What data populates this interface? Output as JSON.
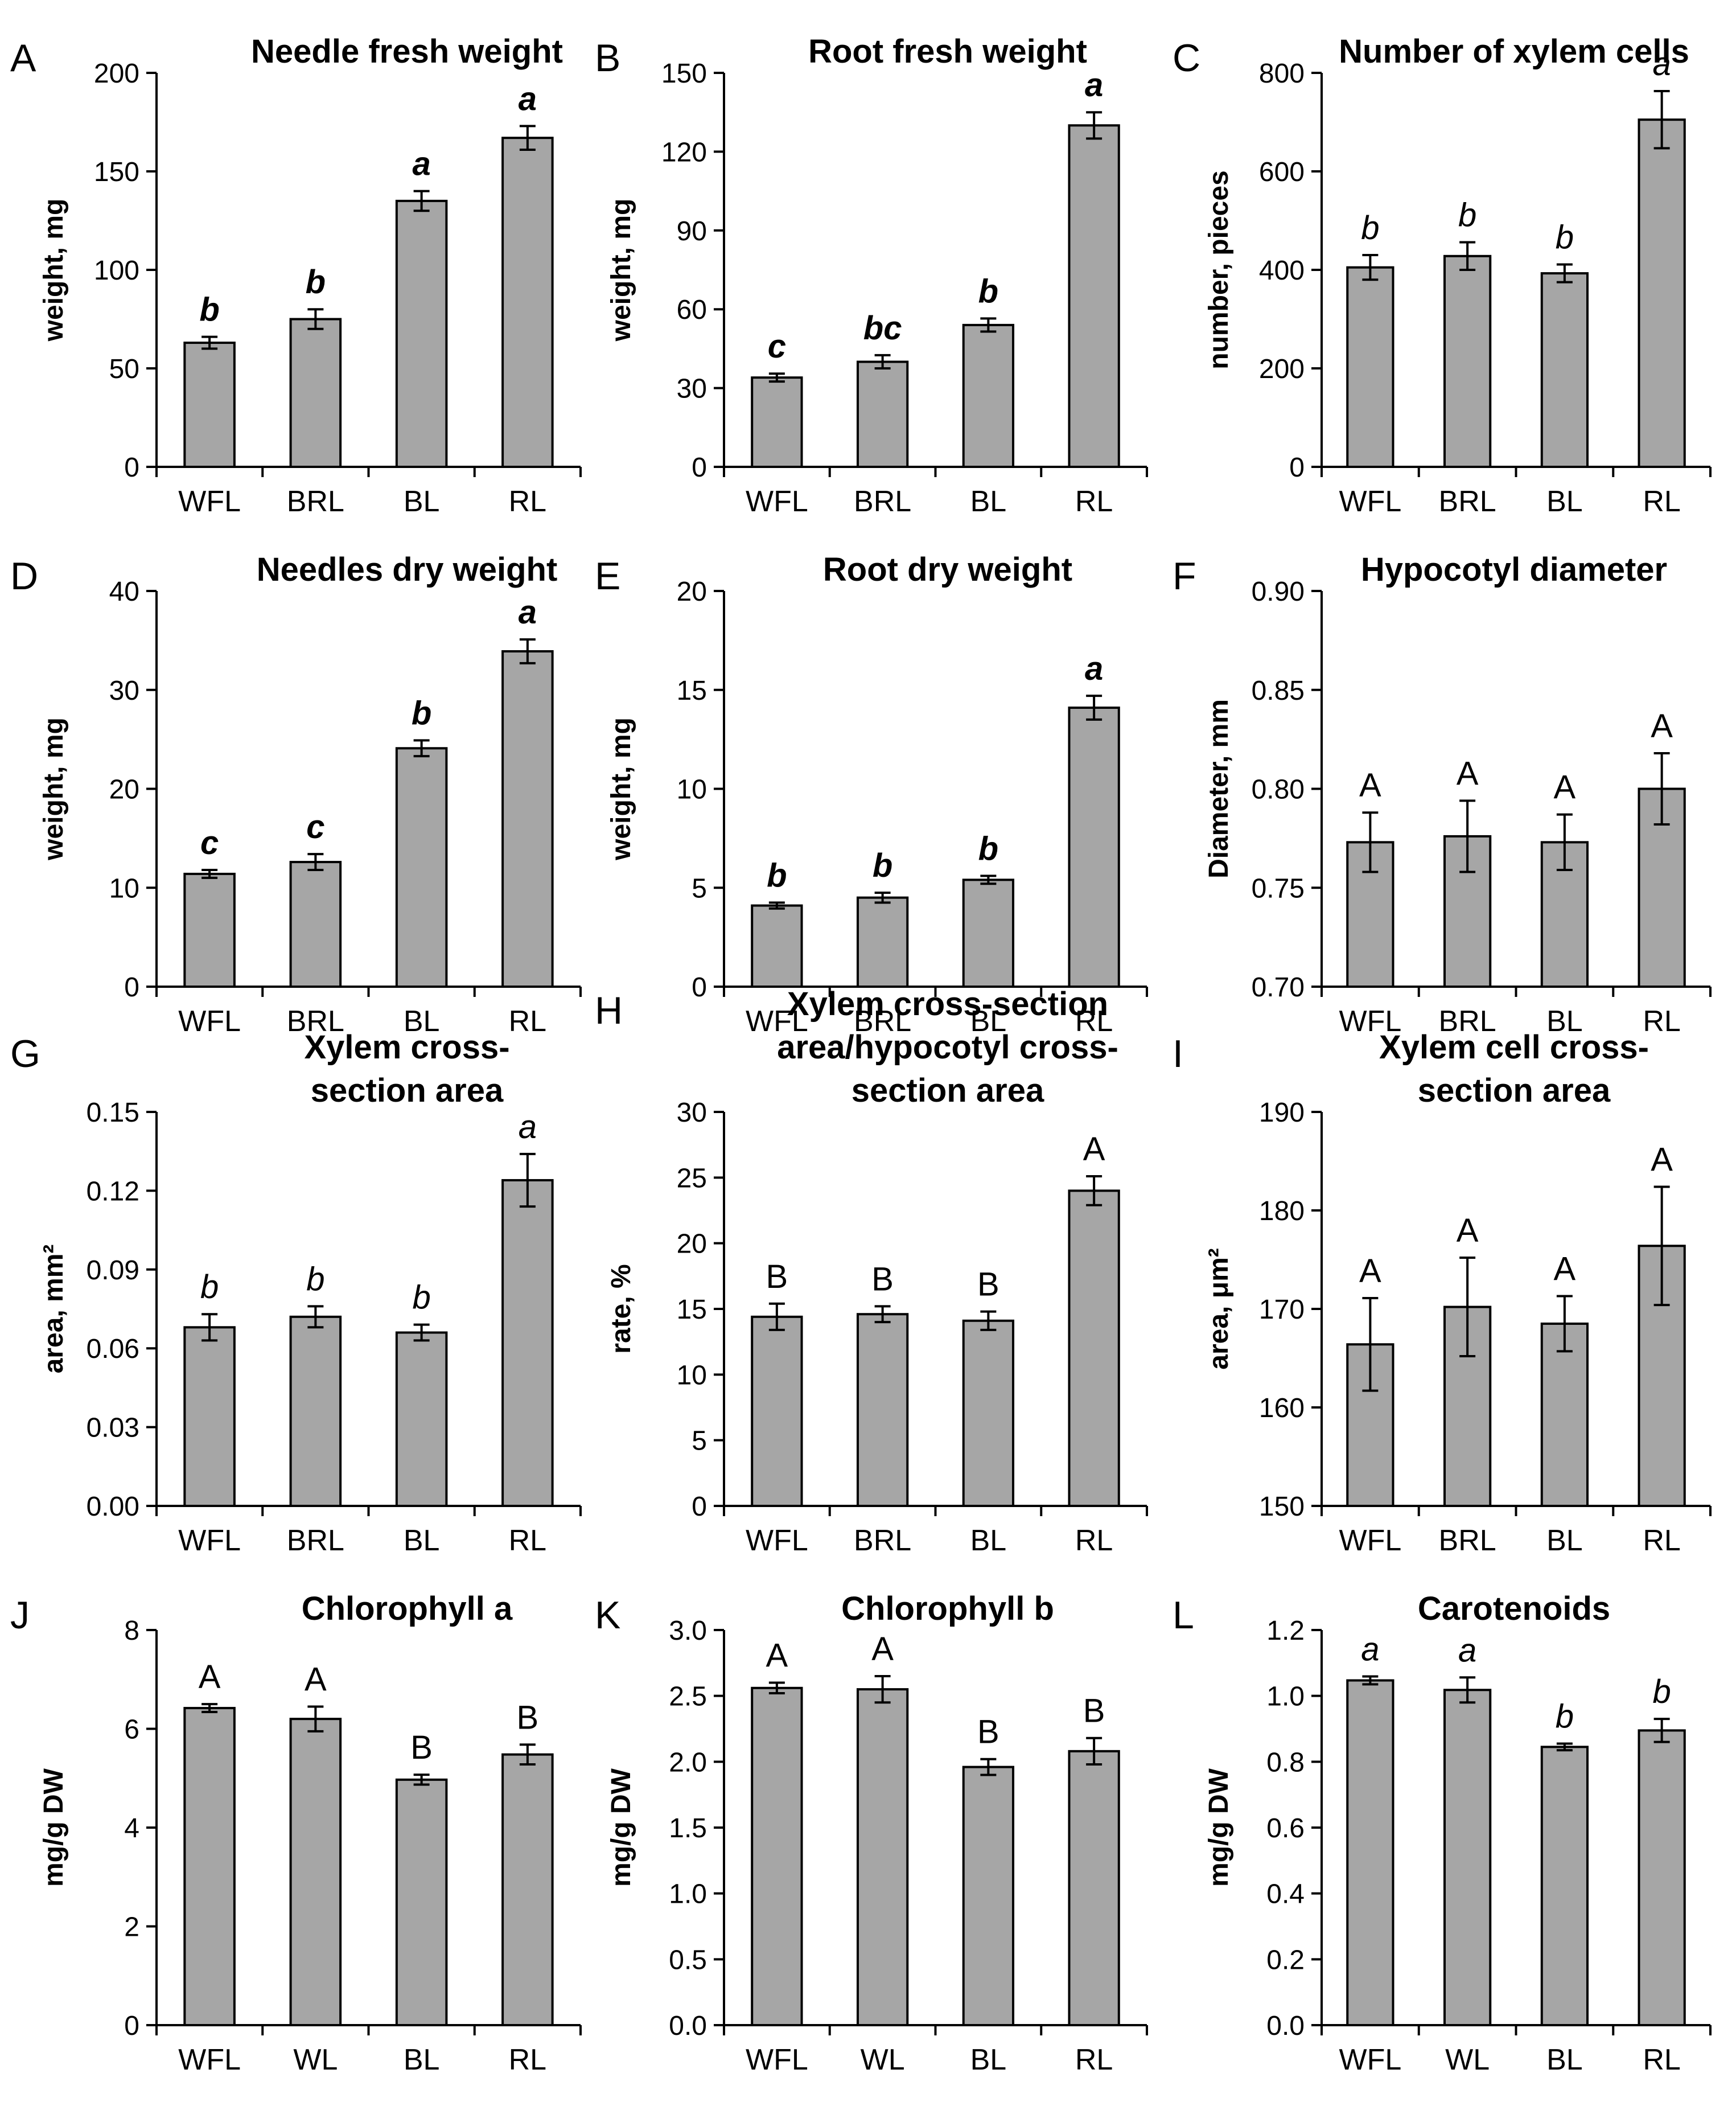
{
  "figure": {
    "panels": [
      {
        "letter": "A",
        "title": [
          "Needle fresh weight"
        ],
        "ylabel": "weight, mg"
      },
      {
        "letter": "B",
        "title": [
          "Root fresh weight"
        ],
        "ylabel": "weight, mg"
      },
      {
        "letter": "C",
        "title": [
          "Number of xylem cells"
        ],
        "ylabel": "number, pieces"
      },
      {
        "letter": "D",
        "title": [
          "Needles dry weight"
        ],
        "ylabel": "weight, mg"
      },
      {
        "letter": "E",
        "title": [
          "Root dry weight"
        ],
        "ylabel": "weight, mg"
      },
      {
        "letter": "F",
        "title": [
          "Hypocotyl diameter"
        ],
        "ylabel": "Diameter, mm"
      },
      {
        "letter": "G",
        "title": [
          "Xylem  cross-",
          "section area"
        ],
        "ylabel": "area, mm²"
      },
      {
        "letter": "H",
        "title": [
          "Xylem cross-section",
          "area/hypocotyl cross-",
          "section area"
        ],
        "ylabel": "rate, %"
      },
      {
        "letter": "I",
        "title": [
          "Xylem cell cross-",
          "section area"
        ],
        "ylabel": "area, μm²"
      },
      {
        "letter": "J",
        "title": [
          "Chlorophyll a"
        ],
        "ylabel": "mg/g DW"
      },
      {
        "letter": "K",
        "title": [
          "Chlorophyll b"
        ],
        "ylabel": "mg/g DW"
      },
      {
        "letter": "L",
        "title": [
          "Carotenoids"
        ],
        "ylabel": "mg/g DW"
      }
    ]
  },
  "chart_data": [
    {
      "type": "bar",
      "title": "Needle fresh weight",
      "ylabel": "weight, mg",
      "categories": [
        "WFL",
        "BRL",
        "BL",
        "RL"
      ],
      "values": [
        63,
        75,
        135,
        167
      ],
      "errors": [
        3,
        5,
        5,
        6
      ],
      "ylim": [
        0,
        200
      ],
      "yticks": [
        "0",
        "50",
        "100",
        "150",
        "200"
      ],
      "labels": [
        "b",
        "b",
        "a",
        "a"
      ],
      "label_style": "bold-italic",
      "bar_color": "#a6a6a6"
    },
    {
      "type": "bar",
      "title": "Root fresh weight",
      "ylabel": "weight, mg",
      "categories": [
        "WFL",
        "BRL",
        "BL",
        "RL"
      ],
      "values": [
        34,
        40,
        54,
        130
      ],
      "errors": [
        1.5,
        2.5,
        2.5,
        5
      ],
      "ylim": [
        0,
        150
      ],
      "yticks": [
        "0",
        "30",
        "60",
        "90",
        "120",
        "150"
      ],
      "labels": [
        "c",
        "bc",
        "b",
        "a"
      ],
      "label_style": "bold-italic",
      "bar_color": "#a6a6a6"
    },
    {
      "type": "bar",
      "title": "Number of xylem cells",
      "ylabel": "number, pieces",
      "categories": [
        "WFL",
        "BRL",
        "BL",
        "RL"
      ],
      "values": [
        405,
        428,
        393,
        705
      ],
      "errors": [
        25,
        28,
        18,
        58
      ],
      "ylim": [
        0,
        800
      ],
      "yticks": [
        "0",
        "200",
        "400",
        "600",
        "800"
      ],
      "labels": [
        "b",
        "b",
        "b",
        "a"
      ],
      "label_style": "italic",
      "bar_color": "#a6a6a6"
    },
    {
      "type": "bar",
      "title": "Needles dry weight",
      "ylabel": "weight, mg",
      "categories": [
        "WFL",
        "BRL",
        "BL",
        "RL"
      ],
      "values": [
        11.4,
        12.6,
        24.1,
        33.9
      ],
      "errors": [
        0.4,
        0.8,
        0.8,
        1.2
      ],
      "ylim": [
        0,
        40
      ],
      "yticks": [
        "0",
        "10",
        "20",
        "30",
        "40"
      ],
      "labels": [
        "c",
        "c",
        "b",
        "a"
      ],
      "label_style": "bold-italic",
      "bar_color": "#a6a6a6"
    },
    {
      "type": "bar",
      "title": "Root dry weight",
      "ylabel": "weight, mg",
      "categories": [
        "WFL",
        "BRL",
        "BL",
        "RL"
      ],
      "values": [
        4.1,
        4.5,
        5.4,
        14.1
      ],
      "errors": [
        0.15,
        0.25,
        0.2,
        0.6
      ],
      "ylim": [
        0,
        20
      ],
      "yticks": [
        "0",
        "5",
        "10",
        "15",
        "20"
      ],
      "labels": [
        "b",
        "b",
        "b",
        "a"
      ],
      "label_style": "bold-italic",
      "bar_color": "#a6a6a6"
    },
    {
      "type": "bar",
      "title": "Hypocotyl diameter",
      "ylabel": "Diameter, mm",
      "categories": [
        "WFL",
        "BRL",
        "BL",
        "RL"
      ],
      "values": [
        0.773,
        0.776,
        0.773,
        0.8
      ],
      "errors": [
        0.015,
        0.018,
        0.014,
        0.018
      ],
      "ylim": [
        0.7,
        0.9
      ],
      "yticks": [
        "0.70",
        "0.75",
        "0.80",
        "0.85",
        "0.90"
      ],
      "labels": [
        "A",
        "A",
        "A",
        "A"
      ],
      "label_style": "normal",
      "bar_color": "#a6a6a6"
    },
    {
      "type": "bar",
      "title": "Xylem  cross-section area",
      "ylabel": "area, mm²",
      "categories": [
        "WFL",
        "BRL",
        "BL",
        "RL"
      ],
      "values": [
        0.068,
        0.072,
        0.066,
        0.124
      ],
      "errors": [
        0.005,
        0.004,
        0.003,
        0.01
      ],
      "ylim": [
        0,
        0.15
      ],
      "yticks": [
        "0.00",
        "0.03",
        "0.06",
        "0.09",
        "0.12",
        "0.15"
      ],
      "labels": [
        "b",
        "b",
        "b",
        "a"
      ],
      "label_style": "italic",
      "bar_color": "#a6a6a6"
    },
    {
      "type": "bar",
      "title": "Xylem cross-section area/hypocotyl cross-section area",
      "ylabel": "rate, %",
      "categories": [
        "WFL",
        "BRL",
        "BL",
        "RL"
      ],
      "values": [
        14.4,
        14.6,
        14.1,
        24
      ],
      "errors": [
        1,
        0.6,
        0.7,
        1.1
      ],
      "ylim": [
        0,
        30
      ],
      "yticks": [
        "0",
        "5",
        "10",
        "15",
        "20",
        "25",
        "30"
      ],
      "labels": [
        "B",
        "B",
        "B",
        "A"
      ],
      "label_style": "normal",
      "bar_color": "#a6a6a6"
    },
    {
      "type": "bar",
      "title": "Xylem cell cross-section area",
      "ylabel": "area, μm²",
      "categories": [
        "WFL",
        "BRL",
        "BL",
        "RL"
      ],
      "values": [
        166.4,
        170.2,
        168.5,
        176.4
      ],
      "errors": [
        4.7,
        5,
        2.8,
        6
      ],
      "ylim": [
        150,
        190
      ],
      "yticks": [
        "150",
        "160",
        "170",
        "180",
        "190"
      ],
      "labels": [
        "A",
        "A",
        "A",
        "A"
      ],
      "label_style": "normal",
      "bar_color": "#a6a6a6"
    },
    {
      "type": "bar",
      "title": "Chlorophyll a",
      "ylabel": "mg/g DW",
      "categories": [
        "WFL",
        "WL",
        "BL",
        "RL"
      ],
      "values": [
        6.42,
        6.2,
        4.97,
        5.48
      ],
      "errors": [
        0.08,
        0.25,
        0.1,
        0.2
      ],
      "ylim": [
        0,
        8
      ],
      "yticks": [
        "0",
        "2",
        "4",
        "6",
        "8"
      ],
      "labels": [
        "A",
        "A",
        "B",
        "B"
      ],
      "label_style": "normal",
      "bar_color": "#a6a6a6"
    },
    {
      "type": "bar",
      "title": "Chlorophyll b",
      "ylabel": "mg/g DW",
      "categories": [
        "WFL",
        "WL",
        "BL",
        "RL"
      ],
      "values": [
        2.56,
        2.55,
        1.96,
        2.08
      ],
      "errors": [
        0.04,
        0.1,
        0.06,
        0.1
      ],
      "ylim": [
        0,
        3
      ],
      "yticks": [
        "0.0",
        "0.5",
        "1.0",
        "1.5",
        "2.0",
        "2.5",
        "3.0"
      ],
      "labels": [
        "A",
        "A",
        "B",
        "B"
      ],
      "label_style": "normal",
      "bar_color": "#a6a6a6"
    },
    {
      "type": "bar",
      "title": "Carotenoids",
      "ylabel": "mg/g DW",
      "categories": [
        "WFL",
        "WL",
        "BL",
        "RL"
      ],
      "values": [
        1.047,
        1.018,
        0.845,
        0.895
      ],
      "errors": [
        0.012,
        0.038,
        0.01,
        0.035
      ],
      "ylim": [
        0,
        1.2
      ],
      "yticks": [
        "0.0",
        "0.2",
        "0.4",
        "0.6",
        "0.8",
        "1.0",
        "1.2"
      ],
      "labels": [
        "a",
        "a",
        "b",
        "b"
      ],
      "label_style": "italic",
      "bar_color": "#a6a6a6"
    }
  ]
}
